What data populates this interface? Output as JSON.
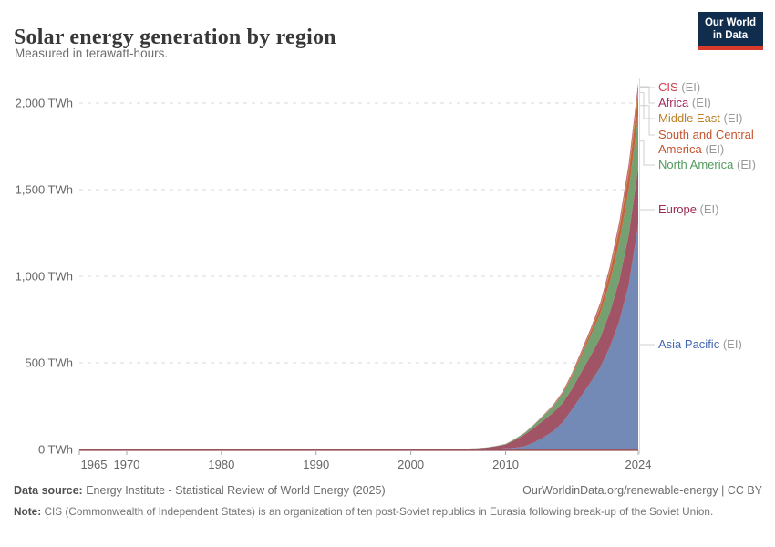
{
  "header": {
    "title": "Solar energy generation by region",
    "subtitle": "Measured in terawatt-hours.",
    "logo_line1": "Our World",
    "logo_line2": "in Data"
  },
  "chart_data": {
    "type": "area",
    "stacked": true,
    "title": "Solar energy generation by region",
    "unit": "TWh",
    "xlim": [
      1965,
      2024
    ],
    "ylim": [
      0,
      2150
    ],
    "grid": "horizontal dashed",
    "legend_position": "right-edge connected labels, top to bottom: CIS, Africa, Middle East, South and Central America, North America, Europe, Asia Pacific",
    "x_years": [
      1965,
      1970,
      1975,
      1980,
      1985,
      1990,
      1995,
      2000,
      2005,
      2006,
      2007,
      2008,
      2009,
      2010,
      2011,
      2012,
      2013,
      2014,
      2015,
      2016,
      2017,
      2018,
      2019,
      2020,
      2021,
      2022,
      2023,
      2024
    ],
    "series": [
      {
        "key": "asia-pacific",
        "name": "Asia Pacific",
        "suffix": "(EI)",
        "fill": "#7389b6",
        "label_color": "#4267b0",
        "values": [
          0,
          0,
          0,
          0,
          0,
          0.1,
          0.2,
          0.4,
          1.8,
          2.1,
          2.5,
          3.2,
          4.3,
          6.5,
          10,
          18,
          40,
          70,
          105,
          155,
          230,
          310,
          390,
          475,
          590,
          740,
          950,
          1300
        ]
      },
      {
        "key": "europe",
        "name": "Europe",
        "suffix": "(EI)",
        "fill": "#a05466",
        "label_color": "#9a2b51",
        "values": [
          0,
          0,
          0,
          0,
          0,
          0,
          0,
          0.1,
          1.5,
          2.5,
          3.9,
          7.4,
          14,
          22,
          45,
          68,
          85,
          98,
          107,
          111,
          119,
          138,
          154,
          170,
          200,
          235,
          290,
          330
        ]
      },
      {
        "key": "north-america",
        "name": "North America",
        "suffix": "(EI)",
        "fill": "#75a06f",
        "label_color": "#549b5e",
        "values": [
          0,
          0,
          0,
          0,
          0,
          0,
          0.1,
          0.2,
          0.6,
          0.7,
          0.9,
          1.2,
          2,
          3.2,
          5.5,
          9,
          16,
          25,
          35,
          52,
          70,
          92,
          115,
          140,
          175,
          220,
          260,
          300
        ]
      },
      {
        "key": "south-central-america",
        "name": "South and Central America",
        "suffix": "(EI)",
        "fill": "#c6633f",
        "label_color": "#c6522f",
        "values": [
          0,
          0,
          0,
          0,
          0,
          0,
          0,
          0,
          0,
          0,
          0,
          0.1,
          0.1,
          0.1,
          0.2,
          0.3,
          0.5,
          1,
          2.5,
          6,
          10,
          14,
          22,
          35,
          55,
          75,
          95,
          110
        ]
      },
      {
        "key": "middle-east",
        "name": "Middle East",
        "suffix": "(EI)",
        "fill": "#c9903f",
        "label_color": "#bb8229",
        "values": [
          0,
          0,
          0,
          0,
          0,
          0,
          0,
          0,
          0,
          0,
          0,
          0,
          0.1,
          0.1,
          0.2,
          0.5,
          1,
          1.5,
          2,
          3,
          5,
          7,
          9,
          12,
          16,
          20,
          28,
          40
        ]
      },
      {
        "key": "africa",
        "name": "Africa",
        "suffix": "(EI)",
        "fill": "#b0567b",
        "label_color": "#a5295f",
        "values": [
          0,
          0,
          0,
          0,
          0,
          0,
          0,
          0,
          0,
          0,
          0,
          0,
          0.1,
          0.3,
          0.5,
          1,
          2,
          4,
          4.2,
          4.5,
          6,
          9,
          11,
          14,
          17,
          20,
          24,
          30
        ]
      },
      {
        "key": "cis",
        "name": "CIS",
        "suffix": "(EI)",
        "fill": "#d2514f",
        "label_color": "#d23d4c",
        "values": [
          0,
          0,
          0,
          0,
          0,
          0,
          0,
          0,
          0,
          0,
          0,
          0,
          0,
          0,
          0,
          0,
          0.1,
          0.1,
          0.2,
          0.5,
          0.7,
          1,
          1.5,
          2,
          3,
          4,
          5,
          8
        ]
      }
    ],
    "y_ticks": [
      {
        "value": 0,
        "label": "0 TWh"
      },
      {
        "value": 500,
        "label": "500 TWh"
      },
      {
        "value": 1000,
        "label": "1,000 TWh"
      },
      {
        "value": 1500,
        "label": "1,500 TWh"
      },
      {
        "value": 2000,
        "label": "2,000 TWh"
      }
    ],
    "x_tick_years": [
      1965,
      1970,
      1980,
      1990,
      2000,
      2010,
      2024
    ]
  },
  "footer": {
    "source_label": "Data source:",
    "source_text": "Energy Institute - Statistical Review of World Energy (2025)",
    "attribution": "OurWorldinData.org/renewable-energy | CC BY",
    "note_label": "Note:",
    "note_text": "CIS (Commonwealth of Independent States) is an organization of ten post-Soviet republics in Eurasia following break-up of the Soviet Union."
  }
}
